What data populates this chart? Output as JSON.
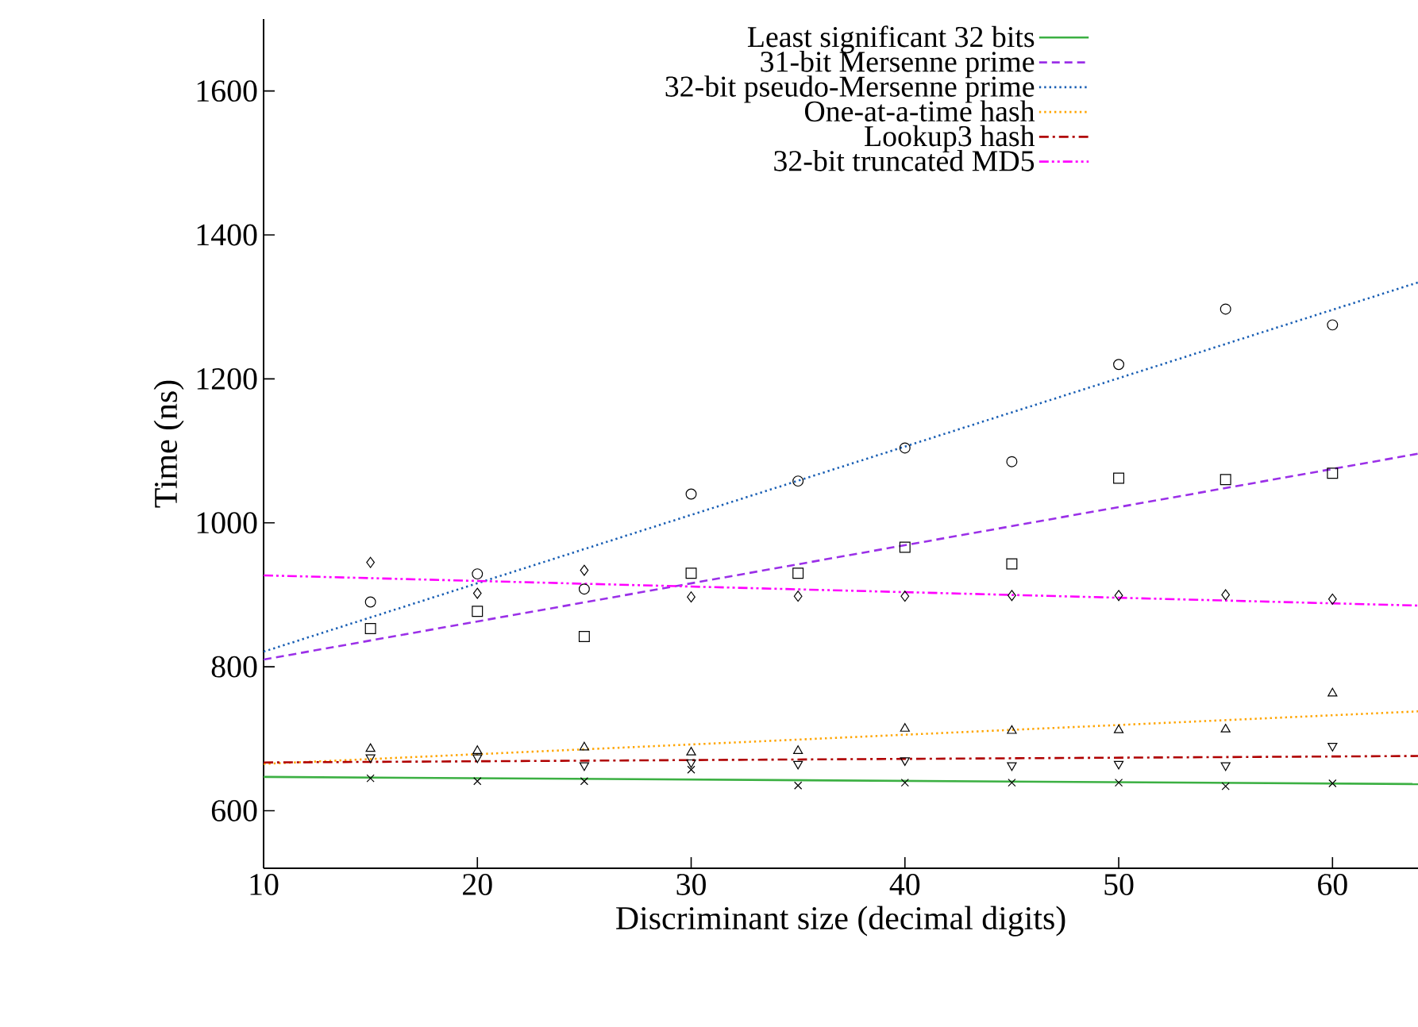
{
  "chart_data": {
    "type": "scatter",
    "xlabel": "Discriminant size (decimal digits)",
    "ylabel": "Time (ns)",
    "xlim": [
      10,
      64
    ],
    "ylim": [
      520,
      1700
    ],
    "xticks": [
      10,
      20,
      30,
      40,
      50,
      60
    ],
    "yticks": [
      600,
      800,
      1000,
      1200,
      1400,
      1600
    ],
    "grid": false,
    "legend": "top left",
    "series": [
      {
        "name": "Least significant 32 bits",
        "type": "line",
        "color": "#3cb043",
        "line_style": "solid",
        "x": [
          10,
          64
        ],
        "values": [
          647,
          637
        ]
      },
      {
        "name": "31-bit Mersenne prime",
        "type": "line",
        "color": "#9b30e8",
        "line_style": "dashed",
        "x": [
          10,
          64
        ],
        "values": [
          810,
          1096
        ]
      },
      {
        "name": "32-bit pseudo-Mersenne prime",
        "type": "line",
        "color": "#1a5fb4",
        "line_style": "dotted",
        "x": [
          10,
          64
        ],
        "values": [
          821,
          1334
        ]
      },
      {
        "name": "One-at-a-time hash",
        "type": "line",
        "color": "#ffa500",
        "line_style": "dotted",
        "x": [
          10,
          64
        ],
        "values": [
          665,
          738
        ]
      },
      {
        "name": "Lookup3 hash",
        "type": "line",
        "color": "#b00000",
        "line_style": "dashdot",
        "x": [
          10,
          64
        ],
        "values": [
          667,
          676
        ]
      },
      {
        "name": "32-bit truncated MD5",
        "type": "line",
        "color": "#ff00ff",
        "line_style": "dashdotdot",
        "x": [
          10,
          64
        ],
        "values": [
          927,
          885
        ]
      },
      {
        "color": "#000000",
        "marker": "cross",
        "x": [
          15,
          20,
          25,
          30,
          35,
          40,
          45,
          50,
          55,
          60
        ],
        "values": [
          645,
          641,
          641,
          657,
          635,
          639,
          639,
          639,
          634,
          638
        ]
      },
      {
        "color": "#000000",
        "marker": "square",
        "x": [
          15,
          20,
          25,
          30,
          35,
          40,
          45,
          50,
          55,
          60
        ],
        "values": [
          853,
          877,
          842,
          930,
          930,
          966,
          943,
          1062,
          1060,
          1069
        ]
      },
      {
        "color": "#000000",
        "marker": "circle",
        "x": [
          15,
          20,
          25,
          30,
          35,
          40,
          45,
          50,
          55,
          60
        ],
        "values": [
          890,
          929,
          908,
          1040,
          1058,
          1104,
          1085,
          1220,
          1297,
          1275
        ]
      },
      {
        "color": "#000000",
        "marker": "triangle",
        "x": [
          15,
          20,
          25,
          30,
          35,
          40,
          45,
          50,
          55,
          60
        ],
        "values": [
          686,
          683,
          688,
          681,
          683,
          714,
          711,
          712,
          713,
          763
        ]
      },
      {
        "color": "#000000",
        "marker": "triangle_down",
        "x": [
          15,
          20,
          25,
          30,
          35,
          40,
          45,
          50,
          55,
          60
        ],
        "values": [
          674,
          674,
          663,
          667,
          665,
          670,
          663,
          665,
          663,
          690
        ]
      },
      {
        "color": "#000000",
        "marker": "diamond",
        "x": [
          15,
          20,
          25,
          30,
          35,
          40,
          45,
          50,
          55,
          60
        ],
        "values": [
          945,
          902,
          934,
          897,
          898,
          898,
          899,
          899,
          900,
          894
        ]
      }
    ]
  }
}
